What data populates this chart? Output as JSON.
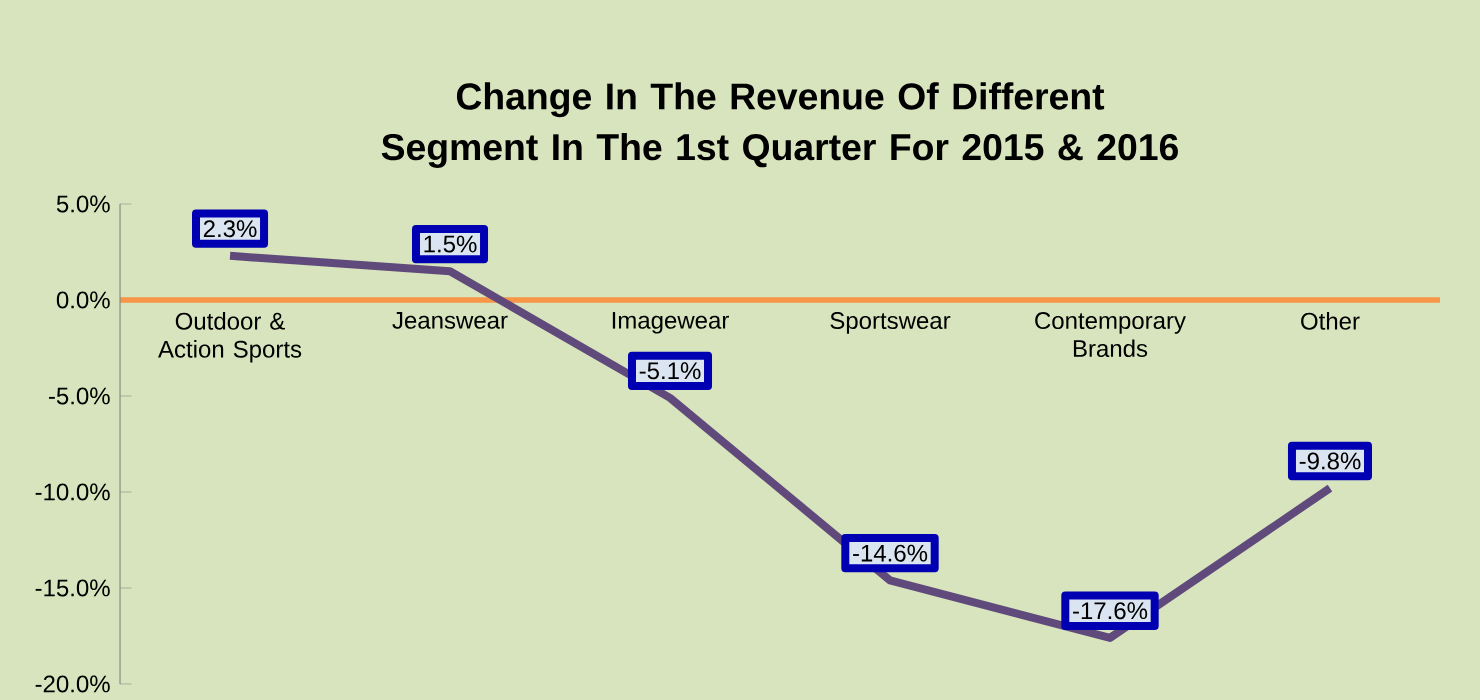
{
  "chart_data": {
    "type": "line",
    "title": "Change In The Revenue Of Different Segment In The 1st Quarter For 2015 & 2016",
    "categories": [
      "Outdoor & Action Sports",
      "Jeanswear",
      "Imagewear",
      "Sportswear",
      "Contemporary Brands",
      "Other"
    ],
    "series": [
      {
        "color": "#604a7b",
        "values": [
          2.3,
          1.5,
          -5.1,
          -14.6,
          -17.6,
          -9.8
        ],
        "value_labels": [
          "2.3%",
          "1.5%",
          "-5.1%",
          "-14.6%",
          "-17.6%",
          "-9.8%"
        ]
      }
    ],
    "ylim": [
      -20,
      5
    ],
    "yticks": [
      {
        "value": 5,
        "label": "5.0%"
      },
      {
        "value": 0,
        "label": "0.0%"
      },
      {
        "value": -5,
        "label": "-5.0%"
      },
      {
        "value": -10,
        "label": "-10.0%"
      },
      {
        "value": -15,
        "label": "-15.0%"
      },
      {
        "value": -20,
        "label": "-20.0%"
      }
    ]
  }
}
